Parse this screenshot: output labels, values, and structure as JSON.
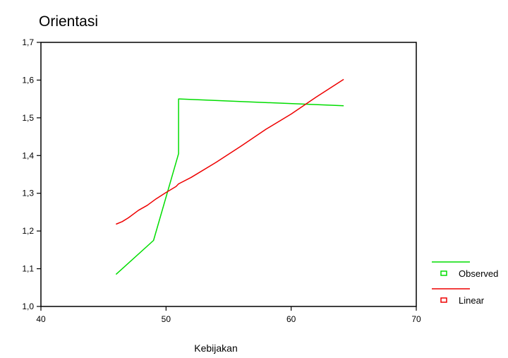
{
  "chart_data": {
    "type": "line",
    "title": "Orientasi",
    "xlabel": "Kebijakan",
    "ylabel": "",
    "xlim": [
      40,
      70
    ],
    "ylim": [
      1.0,
      1.7
    ],
    "x_ticks": [
      40,
      50,
      60,
      70
    ],
    "x_tick_labels": [
      "40",
      "50",
      "60",
      "70"
    ],
    "y_ticks": [
      1.0,
      1.1,
      1.2,
      1.3,
      1.4,
      1.5,
      1.6,
      1.7
    ],
    "y_tick_labels": [
      "1,0",
      "1,1",
      "1,2",
      "1,3",
      "1,4",
      "1,5",
      "1,6",
      "1,7"
    ],
    "grid": false,
    "legend_position": "bottom-right",
    "series": [
      {
        "name": "Observed",
        "color": "#00dd00",
        "points": [
          [
            46,
            1.085
          ],
          [
            49,
            1.175
          ],
          [
            51,
            1.405
          ],
          [
            51,
            1.55
          ],
          [
            64.2,
            1.532
          ]
        ]
      },
      {
        "name": "Linear",
        "color": "#ee0000",
        "points": [
          [
            46,
            1.218
          ],
          [
            46.5,
            1.225
          ],
          [
            47,
            1.235
          ],
          [
            47.8,
            1.255
          ],
          [
            48.5,
            1.268
          ],
          [
            49.2,
            1.285
          ],
          [
            50,
            1.302
          ],
          [
            50.8,
            1.318
          ],
          [
            51,
            1.325
          ],
          [
            52,
            1.342
          ],
          [
            54,
            1.382
          ],
          [
            56,
            1.425
          ],
          [
            58,
            1.47
          ],
          [
            60,
            1.51
          ],
          [
            62,
            1.555
          ],
          [
            64.2,
            1.602
          ]
        ]
      }
    ]
  }
}
